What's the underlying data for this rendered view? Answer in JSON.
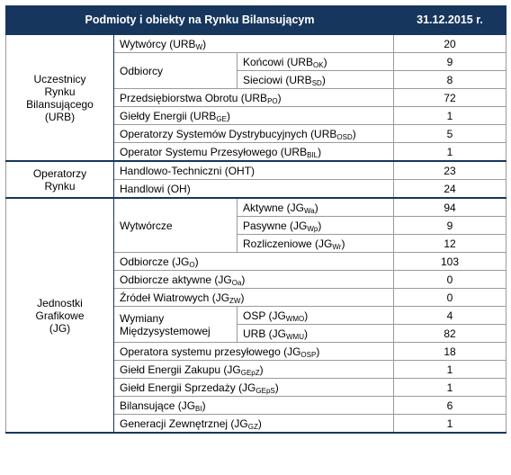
{
  "header": {
    "subjects": "Podmioty i obiekty na Rynku Bilansującym",
    "date": "31.12.2015 r."
  },
  "groups": [
    {
      "lines": [
        "Uczestnicy",
        "Rynku",
        "Bilansującego",
        "(URB)"
      ],
      "items": [
        {
          "label": {
            "text": "Wytwórcy (URB",
            "sub": "W",
            "after": ")"
          },
          "value": 20
        },
        {
          "label": "Odbiorcy",
          "items": [
            {
              "label": {
                "text": "Końcowi (URB",
                "sub": "OK",
                "after": ")"
              },
              "value": 9
            },
            {
              "label": {
                "text": "Sieciowi (URB",
                "sub": "SD",
                "after": ")"
              },
              "value": 8
            }
          ]
        },
        {
          "label": {
            "text": "Przedsiębiorstwa Obrotu (URB",
            "sub": "PO",
            "after": ")"
          },
          "value": 72
        },
        {
          "label": {
            "text": "Giełdy Energii (URB",
            "sub": "GE",
            "after": ")"
          },
          "value": 1
        },
        {
          "label": {
            "text": "Operatorzy Systemów Dystrybucyjnych (URB",
            "sub": "OSD",
            "after": ")"
          },
          "value": 5
        },
        {
          "label": {
            "text": "Operator Systemu Przesyłowego (URB",
            "sub": "BIL",
            "after": ")"
          },
          "value": 1
        }
      ]
    },
    {
      "lines": [
        "Operatorzy",
        "Rynku"
      ],
      "items": [
        {
          "label": "Handlowo-Techniczni (OHT)",
          "value": 23
        },
        {
          "label": "Handlowi (OH)",
          "value": 24
        }
      ]
    },
    {
      "lines": [
        "Jednostki",
        "Grafikowe",
        "(JG)"
      ],
      "items": [
        {
          "label": "Wytwórcze",
          "items": [
            {
              "label": {
                "text": "Aktywne (JG",
                "sub": "Wa",
                "after": ")"
              },
              "value": 94
            },
            {
              "label": {
                "text": "Pasywne (JG",
                "sub": "Wp",
                "after": ")"
              },
              "value": 9
            },
            {
              "label": {
                "text": "Rozliczeniowe (JG",
                "sub": "Wr",
                "after": ")"
              },
              "value": 12
            }
          ]
        },
        {
          "label": {
            "text": "Odbiorcze (JG",
            "sub": "O",
            "after": ")"
          },
          "value": 103
        },
        {
          "label": {
            "text": "Odbiorcze aktywne (JG",
            "sub": "Oa",
            "after": ")"
          },
          "value": 0
        },
        {
          "label": {
            "text": "Źródeł Wiatrowych (JG",
            "sub": "ZW",
            "after": ")"
          },
          "value": 0
        },
        {
          "label": {
            "lines": [
              "Wymiany",
              "Międzysystemowej"
            ]
          },
          "items": [
            {
              "label": {
                "text": "OSP (JG",
                "sub": "WMO",
                "after": ")"
              },
              "value": 4
            },
            {
              "label": {
                "text": "URB (JG",
                "sub": "WMU",
                "after": ")"
              },
              "value": 82
            }
          ]
        },
        {
          "label": {
            "text": "Operatora systemu przesyłowego (JG",
            "sub": "OSP",
            "after": ")"
          },
          "value": 18
        },
        {
          "label": {
            "text": "Giełd Energii Zakupu (JG",
            "sub": "GEpZ",
            "after": ")"
          },
          "value": 1
        },
        {
          "label": {
            "text": "Giełd Energii Sprzedaży (JG",
            "sub": "GEpS",
            "after": ")"
          },
          "value": 1
        },
        {
          "label": {
            "text": "Bilansujące (JG",
            "sub": "BI",
            "after": ")"
          },
          "value": 6
        },
        {
          "label": {
            "text": "Generacji Zewnętrznej (JG",
            "sub": "GZ",
            "after": ")"
          },
          "value": 1
        }
      ]
    }
  ]
}
